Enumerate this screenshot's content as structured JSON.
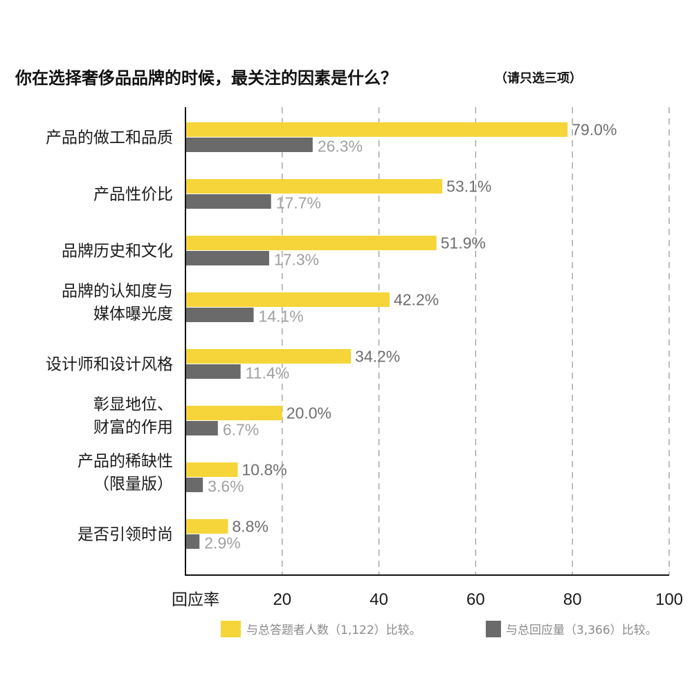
{
  "chart_data": {
    "type": "bar",
    "orientation": "horizontal",
    "title": "你在选择奢侈品品牌的时候，最关注的因素是什么？",
    "subtitle": "（请只选三项）",
    "categories": [
      [
        "产品的做工和品质"
      ],
      [
        "产品性价比"
      ],
      [
        "品牌历史和文化"
      ],
      [
        "品牌的认知度与",
        "媒体曝光度"
      ],
      [
        "设计师和设计风格"
      ],
      [
        "彰显地位、",
        "财富的作用"
      ],
      [
        "产品的稀缺性",
        "（限量版）"
      ],
      [
        "是否引领时尚"
      ]
    ],
    "series": [
      {
        "name": "与总答题者人数（1,122）比较。",
        "color": "#f5d53a",
        "values": [
          79.0,
          53.1,
          51.9,
          42.2,
          34.2,
          20.0,
          10.8,
          8.8
        ],
        "labels": [
          "79.0%",
          "53.1%",
          "51.9%",
          "42.2%",
          "34.2%",
          "20.0%",
          "10.8%",
          "8.8%"
        ]
      },
      {
        "name": "与总回应量（3,366）比较。",
        "color": "#6a6a6a",
        "values": [
          26.3,
          17.7,
          17.3,
          14.1,
          11.4,
          6.7,
          3.6,
          2.9
        ],
        "labels": [
          "26.3%",
          "17.7%",
          "17.3%",
          "14.1%",
          "11.4%",
          "6.7%",
          "3.6%",
          "2.9%"
        ]
      }
    ],
    "xlabel": "回应率",
    "xlim": [
      0,
      100
    ],
    "xticks": [
      20,
      40,
      60,
      80,
      100
    ],
    "grid": "vertical-dashed",
    "legend": "bottom"
  }
}
